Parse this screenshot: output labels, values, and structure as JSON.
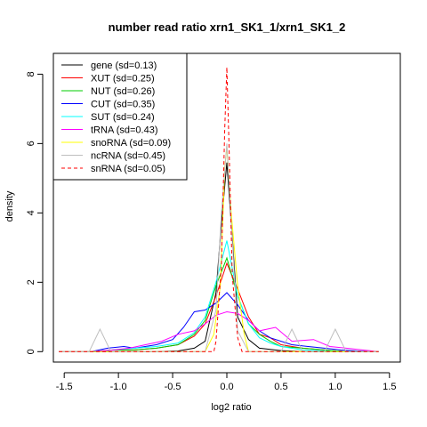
{
  "chart_data": {
    "type": "line",
    "title": "number read ratio xrn1_SK1_1/xrn1_SK1_2",
    "xlabel": "log2 ratio",
    "ylabel": "density",
    "xlim": [
      -1.6,
      1.6
    ],
    "ylim": [
      -0.3,
      8.6
    ],
    "x_ticks": [
      -1.5,
      -1.0,
      -0.5,
      0.0,
      0.5,
      1.0,
      1.5
    ],
    "x_tick_labels": [
      "-1.5",
      "-1.0",
      "-0.5",
      "0.0",
      "0.5",
      "1.0",
      "1.5"
    ],
    "y_ticks": [
      0,
      2,
      4,
      6,
      8
    ],
    "y_tick_labels": [
      "0",
      "2",
      "4",
      "6",
      "8"
    ],
    "grid": false,
    "legend_position": "top-left",
    "series": [
      {
        "name": "gene (sd=0.13)",
        "color": "#000000",
        "dash": false,
        "x": [
          -1.55,
          -1.25,
          -1.05,
          -0.85,
          -0.65,
          -0.45,
          -0.3,
          -0.2,
          -0.1,
          -0.05,
          0.0,
          0.05,
          0.1,
          0.2,
          0.3,
          0.5,
          0.7,
          0.9,
          1.1,
          1.4
        ],
        "y": [
          0,
          0,
          0,
          0,
          0,
          0.02,
          0.1,
          0.3,
          1.7,
          3.7,
          5.45,
          3.3,
          1.0,
          0.35,
          0.1,
          0.03,
          0,
          0,
          0,
          0
        ]
      },
      {
        "name": "XUT (sd=0.25)",
        "color": "#ff0000",
        "dash": false,
        "x": [
          -1.55,
          -1.25,
          -1.05,
          -0.85,
          -0.65,
          -0.45,
          -0.3,
          -0.2,
          -0.1,
          0.0,
          0.1,
          0.2,
          0.3,
          0.4,
          0.5,
          0.7,
          0.9,
          1.1,
          1.4
        ],
        "y": [
          0,
          0,
          0.05,
          0.05,
          0.1,
          0.2,
          0.45,
          0.8,
          1.6,
          2.55,
          1.8,
          1.0,
          0.5,
          0.4,
          0.2,
          0.1,
          0.05,
          0,
          0
        ]
      },
      {
        "name": "NUT (sd=0.26)",
        "color": "#00cc00",
        "dash": false,
        "x": [
          -1.55,
          -1.25,
          -1.05,
          -0.85,
          -0.65,
          -0.45,
          -0.3,
          -0.2,
          -0.1,
          0.0,
          0.1,
          0.2,
          0.3,
          0.4,
          0.5,
          0.7,
          0.9,
          1.1,
          1.4
        ],
        "y": [
          0,
          0,
          0.05,
          0.05,
          0.1,
          0.2,
          0.5,
          0.9,
          1.9,
          2.7,
          1.6,
          0.8,
          0.5,
          0.3,
          0.15,
          0.1,
          0.05,
          0,
          0
        ]
      },
      {
        "name": "CUT (sd=0.35)",
        "color": "#0000ff",
        "dash": false,
        "x": [
          -1.55,
          -1.25,
          -1.1,
          -0.95,
          -0.85,
          -0.65,
          -0.5,
          -0.4,
          -0.3,
          -0.2,
          -0.1,
          0.0,
          0.1,
          0.2,
          0.3,
          0.4,
          0.5,
          0.6,
          0.75,
          0.9,
          1.05,
          1.2,
          1.4
        ],
        "y": [
          0,
          0,
          0.1,
          0.15,
          0.1,
          0.2,
          0.35,
          0.7,
          1.15,
          1.2,
          1.4,
          1.7,
          1.35,
          0.9,
          0.6,
          0.4,
          0.3,
          0.2,
          0.15,
          0.1,
          0.05,
          0.02,
          0
        ]
      },
      {
        "name": "SUT (sd=0.24)",
        "color": "#00ffff",
        "dash": false,
        "x": [
          -1.55,
          -1.25,
          -1.05,
          -0.85,
          -0.65,
          -0.45,
          -0.3,
          -0.2,
          -0.1,
          0.0,
          0.1,
          0.2,
          0.3,
          0.4,
          0.5,
          0.7,
          0.9,
          1.1,
          1.4
        ],
        "y": [
          0,
          0,
          0.05,
          0.1,
          0.15,
          0.25,
          0.55,
          1.0,
          2.0,
          3.2,
          1.6,
          0.8,
          0.4,
          0.25,
          0.15,
          0.05,
          0.02,
          0,
          0
        ]
      },
      {
        "name": "tRNA (sd=0.43)",
        "color": "#ff00ff",
        "dash": false,
        "x": [
          -1.55,
          -1.25,
          -1.05,
          -0.9,
          -0.75,
          -0.6,
          -0.45,
          -0.3,
          -0.2,
          -0.1,
          0.0,
          0.1,
          0.2,
          0.3,
          0.45,
          0.6,
          0.8,
          0.95,
          1.1,
          1.25,
          1.4
        ],
        "y": [
          0,
          0,
          0.05,
          0.1,
          0.2,
          0.3,
          0.5,
          0.6,
          0.8,
          1.05,
          1.15,
          1.1,
          0.9,
          0.6,
          0.7,
          0.3,
          0.35,
          0.15,
          0.1,
          0.05,
          0
        ]
      },
      {
        "name": "snoRNA (sd=0.09)",
        "color": "#ffff00",
        "dash": false,
        "x": [
          -1.55,
          -1.0,
          -0.5,
          -0.2,
          -0.12,
          -0.06,
          -0.02,
          0.0,
          0.04,
          0.1,
          0.16,
          0.2,
          0.5,
          1.0,
          1.4
        ],
        "y": [
          0,
          0,
          0,
          0,
          0.5,
          1.9,
          5.3,
          5.9,
          4.0,
          1.9,
          0.5,
          0,
          0,
          0,
          0
        ]
      },
      {
        "name": "ncRNA (sd=0.45)",
        "color": "#bebebe",
        "dash": false,
        "x": [
          -1.55,
          -1.27,
          -1.17,
          -1.07,
          -0.9,
          -0.5,
          -0.2,
          -0.1,
          -0.05,
          0.0,
          0.05,
          0.1,
          0.2,
          0.4,
          0.5,
          0.6,
          0.7,
          0.9,
          1.0,
          1.1,
          1.4
        ],
        "y": [
          0,
          0,
          0.65,
          0,
          0,
          0,
          0,
          1.2,
          4.0,
          6.0,
          3.2,
          0.6,
          0,
          0,
          0,
          0.65,
          0,
          0,
          0.65,
          0,
          0
        ]
      },
      {
        "name": "snRNA (sd=0.05)",
        "color": "#ff0000",
        "dash": true,
        "x": [
          -1.55,
          -1.0,
          -0.5,
          -0.12,
          -0.1,
          -0.05,
          -0.02,
          0.0,
          0.02,
          0.05,
          0.1,
          0.14,
          0.5,
          1.0,
          1.4
        ],
        "y": [
          0,
          0,
          0,
          0,
          0.3,
          2.5,
          6.4,
          8.2,
          6.0,
          2.2,
          0.4,
          0,
          0,
          0,
          0
        ]
      }
    ]
  }
}
